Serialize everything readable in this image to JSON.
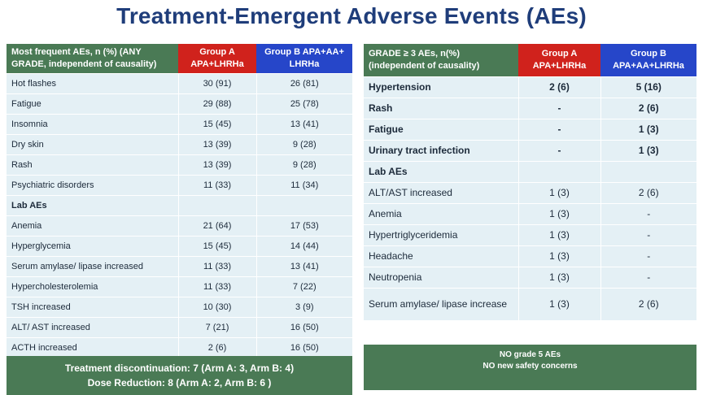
{
  "title": "Treatment-Emergent Adverse Events (AEs)",
  "left_table": {
    "header": {
      "desc": "Most frequent AEs, n (%) (ANY GRADE, independent of causality)",
      "group_a": "Group A APA+LHRHa",
      "group_b": "Group B APA+AA+ LHRHa"
    },
    "rows": [
      {
        "label": "Hot flashes",
        "a": "30 (91)",
        "b": "26 (81)",
        "bold": false
      },
      {
        "label": "Fatigue",
        "a": "29 (88)",
        "b": "25 (78)",
        "bold": false
      },
      {
        "label": "Insomnia",
        "a": "15 (45)",
        "b": "13 (41)",
        "bold": false
      },
      {
        "label": "Dry skin",
        "a": "13 (39)",
        "b": "9 (28)",
        "bold": false
      },
      {
        "label": "Rash",
        "a": "13 (39)",
        "b": "9 (28)",
        "bold": false
      },
      {
        "label": "Psychiatric disorders",
        "a": "11 (33)",
        "b": "11 (34)",
        "bold": false
      },
      {
        "label": "Lab AEs",
        "a": "",
        "b": "",
        "bold": true
      },
      {
        "label": "Anemia",
        "a": "21 (64)",
        "b": "17 (53)",
        "bold": false
      },
      {
        "label": "Hyperglycemia",
        "a": "15 (45)",
        "b": "14 (44)",
        "bold": false
      },
      {
        "label": "Serum amylase/ lipase increased",
        "a": "11 (33)",
        "b": "13 (41)",
        "bold": false
      },
      {
        "label": "Hypercholesterolemia",
        "a": "11 (33)",
        "b": "7 (22)",
        "bold": false
      },
      {
        "label": "TSH increased",
        "a": "10 (30)",
        "b": "3 (9)",
        "bold": false
      },
      {
        "label": "ALT/ AST increased",
        "a": "7 (21)",
        "b": "16 (50)",
        "bold": false
      },
      {
        "label": "ACTH increased",
        "a": "2 (6)",
        "b": "16 (50)",
        "bold": false
      }
    ],
    "footer_line1": "Treatment discontinuation: 7 (Arm A: 3, Arm B: 4)",
    "footer_line2": "Dose Reduction: 8 (Arm A: 2, Arm B: 6 )"
  },
  "right_table": {
    "header": {
      "desc": "GRADE ≥ 3 AEs, n(%) (independent of causality)",
      "group_a": "Group A APA+LHRHa",
      "group_b": "Group B APA+AA+LHRHa"
    },
    "rows": [
      {
        "label": "Hypertension",
        "a": "2 (6)",
        "b": "5 (16)",
        "bold": true
      },
      {
        "label": "Rash",
        "a": "-",
        "b": "2 (6)",
        "bold": true
      },
      {
        "label": "Fatigue",
        "a": "-",
        "b": "1 (3)",
        "bold": true
      },
      {
        "label": "Urinary tract infection",
        "a": "-",
        "b": "1 (3)",
        "bold": true
      },
      {
        "label": "Lab AEs",
        "a": "",
        "b": "",
        "bold": true
      },
      {
        "label": "ALT/AST increased",
        "a": "1 (3)",
        "b": "2 (6)",
        "bold": false
      },
      {
        "label": "Anemia",
        "a": "1 (3)",
        "b": "-",
        "bold": false
      },
      {
        "label": "Hypertriglyceridemia",
        "a": "1 (3)",
        "b": "-",
        "bold": false
      },
      {
        "label": "Headache",
        "a": "1 (3)",
        "b": "-",
        "bold": false
      },
      {
        "label": "Neutropenia",
        "a": "1 (3)",
        "b": "-",
        "bold": false
      },
      {
        "label": "Serum amylase/ lipase increase",
        "a": "1 (3)",
        "b": "2 (6)",
        "bold": false
      }
    ],
    "footer_line1": "NO grade 5 AEs",
    "footer_line2": "NO new safety concerns"
  }
}
